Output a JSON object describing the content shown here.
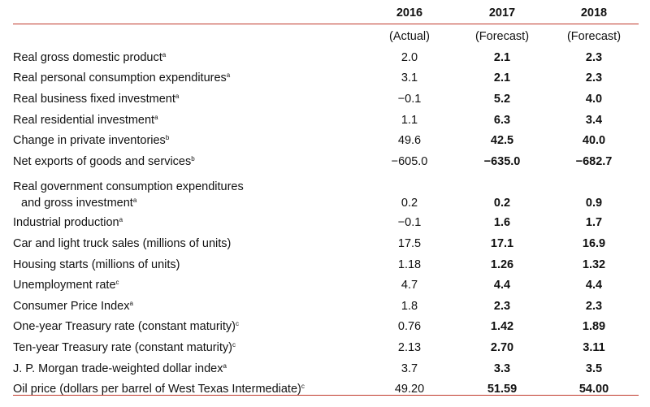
{
  "columns": [
    {
      "year": "2016",
      "note": "(Actual)"
    },
    {
      "year": "2017",
      "note": "(Forecast)"
    },
    {
      "year": "2018",
      "note": "(Forecast)"
    }
  ],
  "rows": [
    {
      "label": "Real gross domestic product",
      "sup": "a",
      "v2016": "2.0",
      "v2017": "2.1",
      "v2018": "2.3"
    },
    {
      "label": "Real personal consumption expenditures",
      "sup": "a",
      "v2016": "3.1",
      "v2017": "2.1",
      "v2018": "2.3"
    },
    {
      "label": "Real business fixed investment",
      "sup": "a",
      "v2016": "−0.1",
      "v2017": "5.2",
      "v2018": "4.0"
    },
    {
      "label": "Real residential investment",
      "sup": "a",
      "v2016": "1.1",
      "v2017": "6.3",
      "v2018": "3.4"
    },
    {
      "label": "Change in private inventories",
      "sup": "b",
      "v2016": "49.6",
      "v2017": "42.5",
      "v2018": "40.0"
    },
    {
      "label": "Net exports of goods and services",
      "sup": "b",
      "v2016": "−605.0",
      "v2017": "−635.0",
      "v2018": "−682.7"
    },
    {
      "label": "Real government consumption expenditures",
      "label2": "and gross investment",
      "sup": "a",
      "v2016": "0.2",
      "v2017": "0.2",
      "v2018": "0.9"
    },
    {
      "label": "Industrial production",
      "sup": "a",
      "v2016": "−0.1",
      "v2017": "1.6",
      "v2018": "1.7"
    },
    {
      "label": "Car and light truck sales (millions of units)",
      "sup": "",
      "v2016": "17.5",
      "v2017": "17.1",
      "v2018": "16.9"
    },
    {
      "label": "Housing starts (millions of units)",
      "sup": "",
      "v2016": "1.18",
      "v2017": "1.26",
      "v2018": "1.32"
    },
    {
      "label": "Unemployment rate",
      "sup": "c",
      "v2016": "4.7",
      "v2017": "4.4",
      "v2018": "4.4"
    },
    {
      "label": "Consumer Price Index",
      "sup": "a",
      "v2016": "1.8",
      "v2017": "2.3",
      "v2018": "2.3"
    },
    {
      "label": "One-year Treasury rate (constant maturity)",
      "sup": "c",
      "v2016": "0.76",
      "v2017": "1.42",
      "v2018": "1.89"
    },
    {
      "label": "Ten-year Treasury rate (constant maturity)",
      "sup": "c",
      "v2016": "2.13",
      "v2017": "2.70",
      "v2018": "3.11"
    },
    {
      "label": "J. P. Morgan trade-weighted dollar index",
      "sup": "a",
      "v2016": "3.7",
      "v2017": "3.3",
      "v2018": "3.5"
    },
    {
      "label": "Oil price (dollars per barrel of West Texas Intermediate)",
      "sup": "c",
      "v2016": "49.20",
      "v2017": "51.59",
      "v2018": "54.00"
    }
  ],
  "colors": {
    "rule": "#c0392b",
    "text": "#111111"
  }
}
